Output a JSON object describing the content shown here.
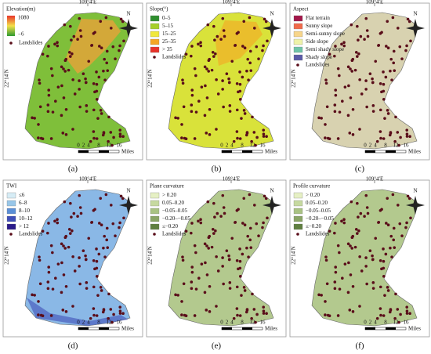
{
  "shared": {
    "lon_label": "109°4′E",
    "lat_label": "22°14′N",
    "north": "N",
    "scale_ticks": [
      0,
      2,
      4,
      8,
      12,
      16
    ],
    "scale_unit": "Miles",
    "landslides": "Landslides"
  },
  "panels": [
    {
      "label": "(a)",
      "legend_title": "Elevation(m)",
      "gradient_labels": [
        "1080",
        "−6"
      ],
      "gradient_colors": [
        "#e8332a",
        "#f3e04a",
        "#2e9a32"
      ]
    },
    {
      "label": "(b)",
      "legend_title": "Slope(°)",
      "classes": [
        {
          "label": "0–5",
          "color": "#2f8f2f"
        },
        {
          "label": "5–15",
          "color": "#a6cf2a"
        },
        {
          "label": "15–25",
          "color": "#f0e83c"
        },
        {
          "label": "25–35",
          "color": "#f5a623"
        },
        {
          "label": "> 35",
          "color": "#e8332a"
        }
      ]
    },
    {
      "label": "(c)",
      "legend_title": "Aspect",
      "classes": [
        {
          "label": "Flat terrain",
          "color": "#a3174a"
        },
        {
          "label": "Sunny slope",
          "color": "#f06a4a"
        },
        {
          "label": "Semi-sunny slope",
          "color": "#f7d58a"
        },
        {
          "label": "Side slope",
          "color": "#eef2a8"
        },
        {
          "label": "Semi shady slope",
          "color": "#6fc4a8"
        },
        {
          "label": "Shady slope",
          "color": "#5a5aa8"
        }
      ]
    },
    {
      "label": "(d)",
      "legend_title": "TWI",
      "classes": [
        {
          "label": "≤6",
          "color": "#d6ecf5"
        },
        {
          "label": "6–8",
          "color": "#98c6e8"
        },
        {
          "label": "8–10",
          "color": "#5a8fd6"
        },
        {
          "label": "10–12",
          "color": "#3f4fb8"
        },
        {
          "label": "> 12",
          "color": "#2a1a8a"
        }
      ]
    },
    {
      "label": "(e)",
      "legend_title": "Plane curvature",
      "classes": [
        {
          "label": "> 0.20",
          "color": "#e6f0c4"
        },
        {
          "label": "0.05–0.20",
          "color": "#c6d9a0"
        },
        {
          "label": "−0.05–0.05",
          "color": "#a9c283"
        },
        {
          "label": "−0.20–−0.05",
          "color": "#8aa566"
        },
        {
          "label": "≤−0.20",
          "color": "#5f7f40"
        }
      ]
    },
    {
      "label": "(f)",
      "legend_title": "Profile curvature",
      "classes": [
        {
          "label": "> 0.20",
          "color": "#e6f0c4"
        },
        {
          "label": "0.05–0.20",
          "color": "#c6d9a0"
        },
        {
          "label": "−0.05–0.05",
          "color": "#a9c283"
        },
        {
          "label": "−0.20–−0.05",
          "color": "#8aa566"
        },
        {
          "label": "≤−0.20",
          "color": "#5f7f40"
        }
      ]
    }
  ]
}
